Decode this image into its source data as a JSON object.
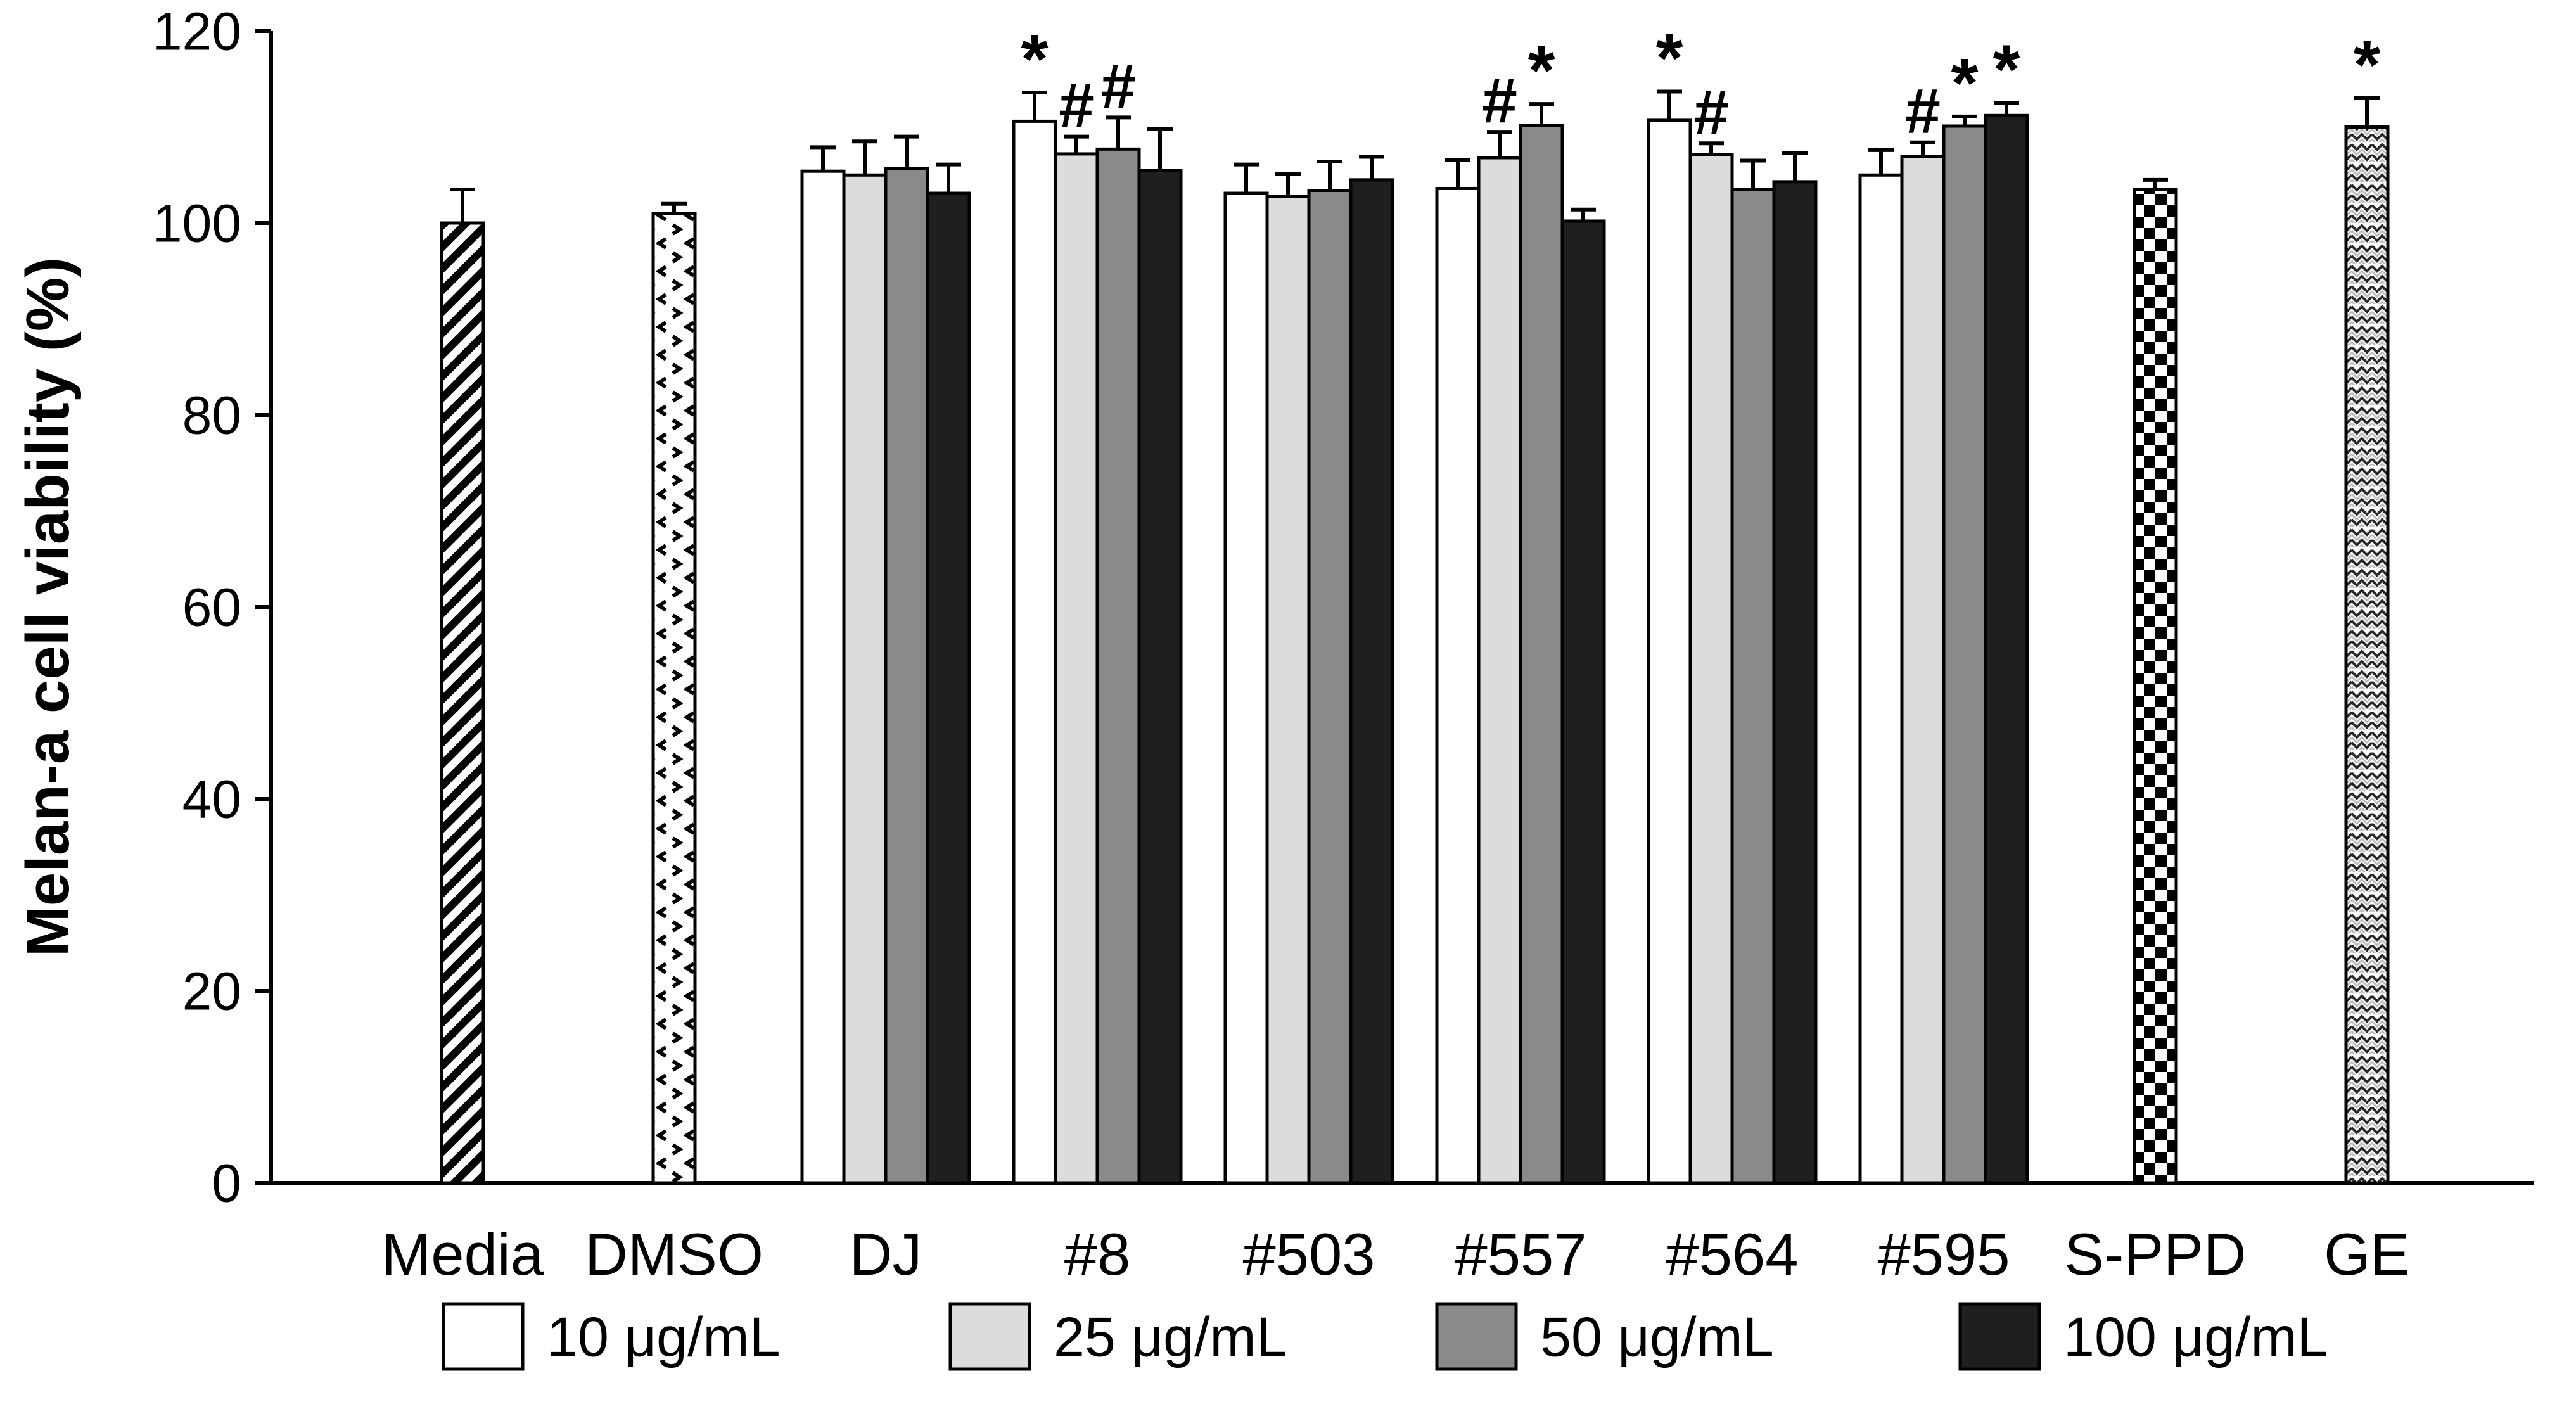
{
  "figure": {
    "background": "#ffffff",
    "axis_color": "#000000"
  },
  "chart_data": {
    "type": "bar",
    "title": "",
    "xlabel": "",
    "ylabel": "Melan-a cell viability (%)",
    "ylim": [
      0,
      120
    ],
    "yticks": [
      0,
      20,
      40,
      60,
      80,
      100,
      120
    ],
    "grid": false,
    "error_bars": "upper only, black caps",
    "legend_position": "bottom",
    "series_legend": [
      {
        "label": "10 μg/mL",
        "fill": "#ffffff"
      },
      {
        "label": "25 μg/mL",
        "fill": "#dcdcdc"
      },
      {
        "label": "50 μg/mL",
        "fill": "#8a8a8a"
      },
      {
        "label": "100 μg/mL",
        "fill": "#1f1f1f"
      }
    ],
    "categories": [
      {
        "label": "Media",
        "pattern": "diagonal-stripes",
        "values": [
          100.0
        ],
        "errors": [
          3.5
        ],
        "markers": [
          ""
        ]
      },
      {
        "label": "DMSO",
        "pattern": "dots",
        "values": [
          101.0
        ],
        "errors": [
          1.0
        ],
        "markers": [
          ""
        ]
      },
      {
        "label": "DJ",
        "values": [
          105.4,
          105.0,
          105.7,
          103.1
        ],
        "errors": [
          2.5,
          3.5,
          3.3,
          3.0
        ],
        "markers": [
          "",
          "",
          "",
          ""
        ]
      },
      {
        "label": "#8",
        "values": [
          110.6,
          107.2,
          107.7,
          105.5
        ],
        "errors": [
          3.0,
          1.8,
          3.3,
          4.3
        ],
        "markers": [
          "*",
          "#",
          "#",
          ""
        ]
      },
      {
        "label": "#503",
        "values": [
          103.1,
          102.8,
          103.4,
          104.5
        ],
        "errors": [
          3.0,
          2.3,
          3.0,
          2.4
        ],
        "markers": [
          "",
          "",
          "",
          ""
        ]
      },
      {
        "label": "#557",
        "values": [
          103.6,
          106.8,
          110.2,
          100.2
        ],
        "errors": [
          3.0,
          2.7,
          2.2,
          1.2
        ],
        "markers": [
          "",
          "#",
          "*",
          ""
        ]
      },
      {
        "label": "#564",
        "values": [
          110.7,
          107.1,
          103.5,
          104.3
        ],
        "errors": [
          3.0,
          1.2,
          3.0,
          3.0
        ],
        "markers": [
          "*",
          "#",
          "",
          ""
        ]
      },
      {
        "label": "#595",
        "values": [
          105.0,
          106.9,
          110.1,
          111.2
        ],
        "errors": [
          2.6,
          1.5,
          1.0,
          1.3
        ],
        "markers": [
          "",
          "#",
          "*",
          "*"
        ]
      },
      {
        "label": "S-PPD",
        "pattern": "checkerboard",
        "values": [
          103.5
        ],
        "errors": [
          1.0
        ],
        "markers": [
          ""
        ]
      },
      {
        "label": "GE",
        "pattern": "weave",
        "values": [
          110.0
        ],
        "errors": [
          3.0
        ],
        "markers": [
          "*"
        ]
      }
    ],
    "significance_symbols": [
      "*",
      "#"
    ]
  }
}
